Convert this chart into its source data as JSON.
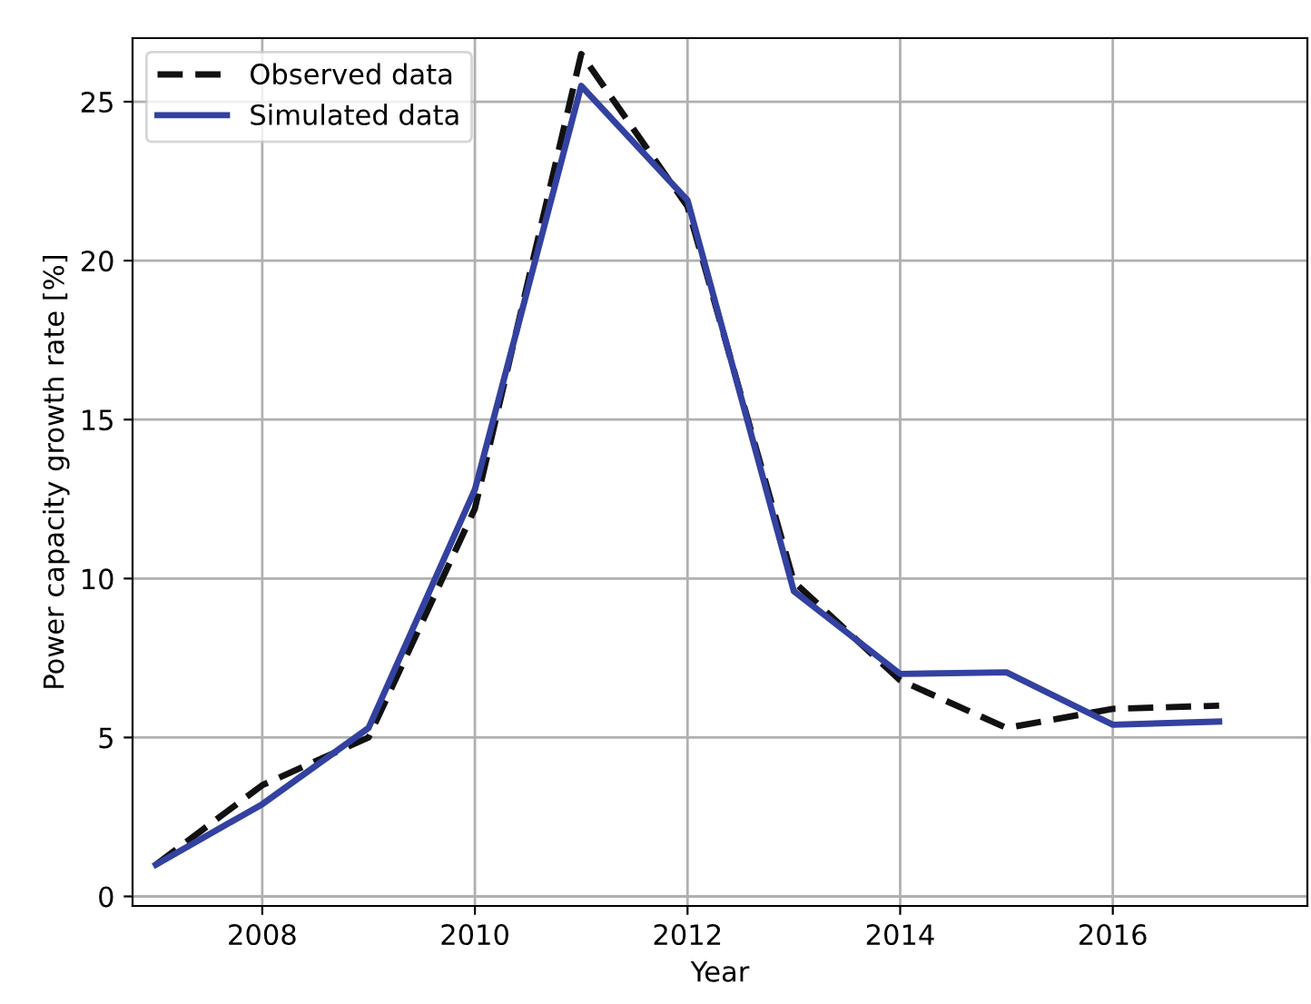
{
  "chart_data": {
    "type": "line",
    "xlabel": "Year",
    "ylabel": "Power capacity growth rate [%]",
    "x": [
      2007,
      2008,
      2009,
      2010,
      2011,
      2012,
      2013,
      2014,
      2015,
      2016,
      2017
    ],
    "series": [
      {
        "name": "Observed data",
        "color": "#111111",
        "line_style": "dashed",
        "values": [
          1.0,
          3.5,
          5.0,
          12.2,
          26.5,
          21.7,
          9.9,
          6.8,
          5.3,
          5.9,
          6.0
        ]
      },
      {
        "name": "Simulated data",
        "color": "#3341a0",
        "line_style": "solid",
        "values": [
          1.0,
          2.9,
          5.3,
          12.8,
          25.5,
          21.9,
          9.6,
          7.0,
          7.05,
          5.4,
          5.5
        ]
      }
    ],
    "xlim": [
      2006.78,
      2017.83
    ],
    "ylim": [
      -0.3,
      27.0
    ],
    "xticks": [
      2008,
      2010,
      2012,
      2014,
      2016
    ],
    "yticks": [
      0,
      5,
      10,
      15,
      20,
      25
    ],
    "grid": true,
    "legend": "top left",
    "marker": "none"
  }
}
